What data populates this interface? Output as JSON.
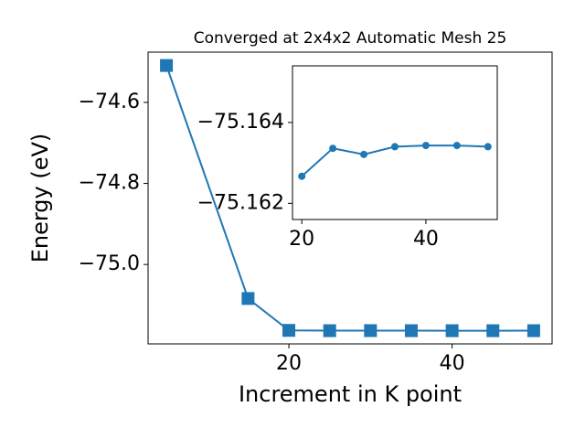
{
  "chart_data": [
    {
      "type": "line",
      "title": "Converged at 2x4x2 Automatic Mesh 25",
      "xlabel": "Increment in K point",
      "ylabel": "Energy (eV)",
      "x": [
        5,
        15,
        20,
        25,
        30,
        35,
        40,
        45,
        50
      ],
      "series": [
        {
          "color": "#1f77b4",
          "marker": "square",
          "values": [
            -74.509,
            -75.084,
            -75.16267,
            -75.16336,
            -75.16321,
            -75.1634,
            -75.16343,
            -75.16343,
            -75.1634
          ]
        }
      ],
      "xlim": [
        2.75,
        52.25
      ],
      "ylim": [
        -75.196,
        -74.476
      ],
      "xticks": [
        20,
        40
      ],
      "yticks": [
        {
          "value": -74.6,
          "label": "−74.6"
        },
        {
          "value": -74.8,
          "label": "−74.8"
        },
        {
          "value": -75.0,
          "label": "−75.0"
        }
      ]
    },
    {
      "type": "line",
      "x": [
        20,
        25,
        30,
        35,
        40,
        45,
        50
      ],
      "series": [
        {
          "color": "#1f77b4",
          "marker": "circle",
          "values": [
            -75.16267,
            -75.16336,
            -75.16321,
            -75.1634,
            -75.16343,
            -75.16343,
            -75.1634
          ]
        }
      ],
      "xlim": [
        18.5,
        51.5
      ],
      "ylim": [
        -75.1616,
        -75.1654
      ],
      "xticks": [
        20,
        40
      ],
      "yticks": [
        {
          "value": -75.164,
          "label": "−75.164"
        },
        {
          "value": -75.162,
          "label": "−75.162"
        }
      ]
    }
  ]
}
